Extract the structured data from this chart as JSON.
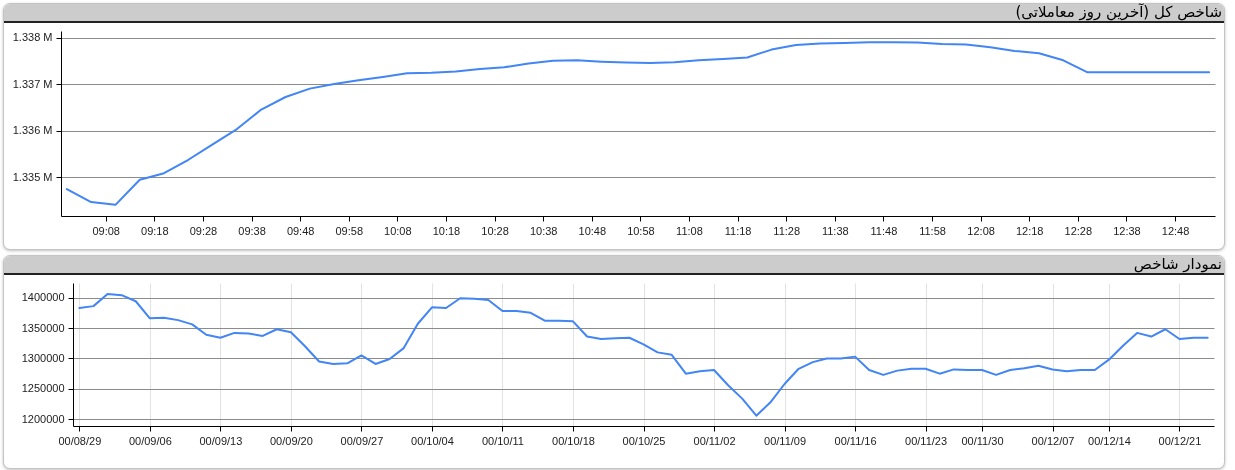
{
  "chart_data": [
    {
      "type": "line",
      "title": "شاخص کل (آخرین روز معاملاتی)",
      "color": "#4285f4",
      "grid": "y",
      "x": [
        9.0,
        9.0833,
        9.1667,
        9.25,
        9.3333,
        9.4167,
        9.5,
        9.5833,
        9.6667,
        9.75,
        9.8333,
        9.9167,
        10.0,
        10.0833,
        10.1667,
        10.25,
        10.3333,
        10.4167,
        10.5,
        10.5833,
        10.6667,
        10.75,
        10.8333,
        10.9167,
        11.0,
        11.0833,
        11.1667,
        11.25,
        11.3333,
        11.4167,
        11.5,
        11.5833,
        11.6667,
        11.75,
        11.8333,
        11.9167,
        12.0,
        12.0833,
        12.1667,
        12.25,
        12.3333,
        12.4167,
        12.5,
        12.5833,
        12.6667,
        12.75,
        12.8333,
        12.9167
      ],
      "values": [
        1334750,
        1334470,
        1334410,
        1334950,
        1335090,
        1335380,
        1335710,
        1336040,
        1336460,
        1336730,
        1336910,
        1337010,
        1337090,
        1337160,
        1337240,
        1337250,
        1337280,
        1337330,
        1337370,
        1337450,
        1337510,
        1337520,
        1337490,
        1337470,
        1337460,
        1337480,
        1337520,
        1337550,
        1337580,
        1337750,
        1337850,
        1337880,
        1337890,
        1337910,
        1337910,
        1337900,
        1337870,
        1337860,
        1337800,
        1337720,
        1337670,
        1337520,
        1337260,
        1337260,
        1337260,
        1337260,
        1337260,
        1337260
      ],
      "xlim": [
        8.98,
        12.937
      ],
      "xticks": [
        {
          "value": 9.1333,
          "label": "09:08"
        },
        {
          "value": 9.3,
          "label": "09:18"
        },
        {
          "value": 9.4667,
          "label": "09:28"
        },
        {
          "value": 9.6333,
          "label": "09:38"
        },
        {
          "value": 9.8,
          "label": "09:48"
        },
        {
          "value": 9.9667,
          "label": "09:58"
        },
        {
          "value": 10.1333,
          "label": "10:08"
        },
        {
          "value": 10.3,
          "label": "10:18"
        },
        {
          "value": 10.4667,
          "label": "10:28"
        },
        {
          "value": 10.6333,
          "label": "10:38"
        },
        {
          "value": 10.8,
          "label": "10:48"
        },
        {
          "value": 10.9667,
          "label": "10:58"
        },
        {
          "value": 11.1333,
          "label": "11:08"
        },
        {
          "value": 11.3,
          "label": "11:18"
        },
        {
          "value": 11.4667,
          "label": "11:28"
        },
        {
          "value": 11.6333,
          "label": "11:38"
        },
        {
          "value": 11.8,
          "label": "11:48"
        },
        {
          "value": 11.9667,
          "label": "11:58"
        },
        {
          "value": 12.1333,
          "label": "12:08"
        },
        {
          "value": 12.3,
          "label": "12:18"
        },
        {
          "value": 12.4667,
          "label": "12:28"
        },
        {
          "value": 12.6333,
          "label": "12:38"
        },
        {
          "value": 12.8,
          "label": "12:48"
        }
      ],
      "ylim": [
        1334170,
        1338150
      ],
      "yticks": [
        {
          "value": 1335000,
          "label": "1.335 M"
        },
        {
          "value": 1336000,
          "label": "1.336 M"
        },
        {
          "value": 1337000,
          "label": "1.337 M"
        },
        {
          "value": 1338000,
          "label": "1.338 M"
        }
      ]
    },
    {
      "type": "line",
      "title": "نمودار شاخص",
      "color": "#4285f4",
      "grid": true,
      "categories": [
        "00/08/29",
        null,
        null,
        null,
        null,
        "00/09/06",
        null,
        null,
        null,
        null,
        "00/09/13",
        null,
        null,
        null,
        null,
        "00/09/20",
        null,
        null,
        null,
        null,
        "00/09/27",
        null,
        null,
        null,
        null,
        "00/10/04",
        null,
        null,
        null,
        null,
        "00/10/11",
        null,
        null,
        null,
        null,
        "00/10/18",
        null,
        null,
        null,
        null,
        "00/10/25",
        null,
        null,
        null,
        null,
        "00/11/02",
        null,
        null,
        null,
        null,
        "00/11/09",
        null,
        null,
        null,
        null,
        "00/11/16",
        null,
        null,
        null,
        null,
        "00/11/23",
        null,
        null,
        null,
        "00/11/30",
        null,
        null,
        null,
        null,
        "00/12/07",
        null,
        null,
        null,
        "00/12/14",
        null,
        null,
        null,
        null,
        "00/12/21",
        null,
        null
      ],
      "values": [
        1383000,
        1386000,
        1406000,
        1404000,
        1394000,
        1366000,
        1367000,
        1363000,
        1356000,
        1339000,
        1334000,
        1342000,
        1341000,
        1337000,
        1348000,
        1343000,
        1320000,
        1295000,
        1291000,
        1292000,
        1305000,
        1291000,
        1299000,
        1317000,
        1357000,
        1384000,
        1383000,
        1399000,
        1398000,
        1396000,
        1378000,
        1378000,
        1375000,
        1362000,
        1362000,
        1361000,
        1336000,
        1332000,
        1333000,
        1334000,
        1323000,
        1310000,
        1306000,
        1275000,
        1279000,
        1281000,
        1256000,
        1234000,
        1206000,
        1228000,
        1258000,
        1283000,
        1294000,
        1300000,
        1300000,
        1303000,
        1281000,
        1273000,
        1280000,
        1283000,
        1283000,
        1275000,
        1282000,
        1281000,
        1281000,
        1273000,
        1281000,
        1284000,
        1288000,
        1282000,
        1279000,
        1281000,
        1281000,
        1298000,
        1321000,
        1342000,
        1336000,
        1348000,
        1332000,
        1334000,
        1334000
      ],
      "ylim": [
        1189000,
        1424000
      ],
      "yticks": [
        1200000,
        1250000,
        1300000,
        1350000,
        1400000
      ]
    }
  ]
}
